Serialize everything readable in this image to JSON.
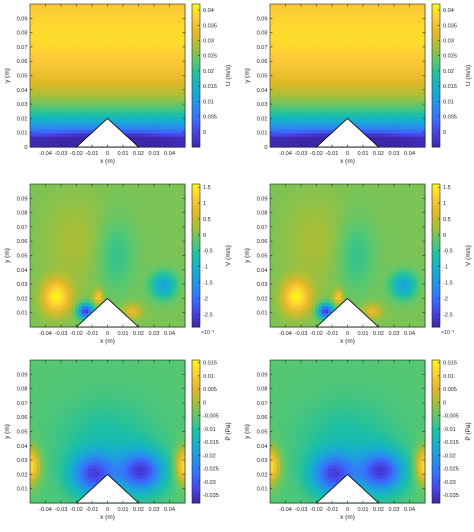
{
  "chart_data": [
    {
      "type": "heatmap",
      "variable": "U",
      "field": "u-velocity",
      "xlabel": "x (m)",
      "ylabel": "y (m)",
      "xlim": [
        -0.05,
        0.05
      ],
      "ylim": [
        0,
        0.1
      ],
      "xticks": [
        "-0.04",
        "-0.03",
        "-0.02",
        "-0.01",
        "0",
        "0.01",
        "0.02",
        "0.03",
        "0.04"
      ],
      "yticks": [
        "0",
        "0.01",
        "0.02",
        "0.03",
        "0.04",
        "0.05",
        "0.06",
        "0.07",
        "0.08",
        "0.09"
      ],
      "colorbar": {
        "label": "U (m/s)",
        "range": [
          -0.005,
          0.042
        ],
        "ticks": [
          "0",
          "0.005",
          "0.01",
          "0.015",
          "0.02",
          "0.025",
          "0.03",
          "0.035",
          "0.04"
        ],
        "exponent": ""
      },
      "obstacle": {
        "shape": "triangle",
        "base_x": [
          -0.02,
          0.02
        ],
        "apex": [
          0,
          0.02
        ]
      },
      "colormap": "parula"
    },
    {
      "type": "heatmap",
      "variable": "U",
      "field": "u-velocity",
      "xlabel": "x (m)",
      "ylabel": "y (m)",
      "xlim": [
        -0.05,
        0.05
      ],
      "ylim": [
        0,
        0.1
      ],
      "xticks": [
        "-0.04",
        "-0.03",
        "-0.02",
        "-0.01",
        "0",
        "0.01",
        "0.02",
        "0.03",
        "0.04"
      ],
      "yticks": [
        "0",
        "0.01",
        "0.02",
        "0.03",
        "0.04",
        "0.05",
        "0.06",
        "0.07",
        "0.08",
        "0.09"
      ],
      "colorbar": {
        "label": "U (m/s)",
        "range": [
          -0.005,
          0.042
        ],
        "ticks": [
          "0",
          "0.005",
          "0.01",
          "0.015",
          "0.02",
          "0.025",
          "0.03",
          "0.035",
          "0.04"
        ],
        "exponent": ""
      },
      "obstacle": {
        "shape": "triangle",
        "base_x": [
          -0.02,
          0.02
        ],
        "apex": [
          0,
          0.02
        ]
      },
      "colormap": "parula"
    },
    {
      "type": "heatmap",
      "variable": "V",
      "field": "v-velocity",
      "xlabel": "x (m)",
      "ylabel": "y (m)",
      "xlim": [
        -0.05,
        0.05
      ],
      "ylim": [
        0,
        0.1
      ],
      "xticks": [
        "-0.04",
        "-0.03",
        "-0.02",
        "-0.01",
        "0",
        "0.01",
        "0.02",
        "0.03",
        "0.04"
      ],
      "yticks": [
        "0.01",
        "0.02",
        "0.03",
        "0.04",
        "0.05",
        "0.06",
        "0.07",
        "0.08",
        "0.09"
      ],
      "colorbar": {
        "label": "V (m/s)",
        "range": [
          -2.9,
          1.6
        ],
        "ticks": [
          "-2.5",
          "-2",
          "-1.5",
          "-1",
          "-0.5",
          "0",
          "0.5",
          "1",
          "1.5"
        ],
        "exponent": "×10⁻³"
      },
      "obstacle": {
        "shape": "triangle",
        "base_x": [
          -0.02,
          0.02
        ],
        "apex": [
          0,
          0.02
        ]
      },
      "colormap": "parula"
    },
    {
      "type": "heatmap",
      "variable": "V",
      "field": "v-velocity",
      "xlabel": "x (m)",
      "ylabel": "y (m)",
      "xlim": [
        -0.05,
        0.05
      ],
      "ylim": [
        0,
        0.1
      ],
      "xticks": [
        "-0.04",
        "-0.03",
        "-0.02",
        "-0.01",
        "0",
        "0.01",
        "0.02",
        "0.03",
        "0.04"
      ],
      "yticks": [
        "0.01",
        "0.02",
        "0.03",
        "0.04",
        "0.05",
        "0.06",
        "0.07",
        "0.08",
        "0.09"
      ],
      "colorbar": {
        "label": "V (m/s)",
        "range": [
          -2.9,
          1.6
        ],
        "ticks": [
          "-2.5",
          "-2",
          "-1.5",
          "-1",
          "-0.5",
          "0",
          "0.5",
          "1",
          "1.5"
        ],
        "exponent": "×10⁻³"
      },
      "obstacle": {
        "shape": "triangle",
        "base_x": [
          -0.02,
          0.02
        ],
        "apex": [
          0,
          0.02
        ]
      },
      "colormap": "parula"
    },
    {
      "type": "heatmap",
      "variable": "P",
      "field": "pressure",
      "xlabel": "x (m)",
      "ylabel": "y (m)",
      "xlim": [
        -0.05,
        0.05
      ],
      "ylim": [
        0,
        0.1
      ],
      "xticks": [
        "-0.04",
        "-0.03",
        "-0.02",
        "-0.01",
        "0",
        "0.01",
        "0.02",
        "0.03",
        "0.04"
      ],
      "yticks": [
        "0.01",
        "0.02",
        "0.03",
        "0.04",
        "0.05",
        "0.06",
        "0.07",
        "0.08",
        "0.09"
      ],
      "colorbar": {
        "label": "P (Pa)",
        "range": [
          -0.038,
          0.016
        ],
        "ticks": [
          "-0.035",
          "-0.03",
          "-0.025",
          "-0.02",
          "-0.015",
          "-0.01",
          "-0.005",
          "0",
          "0.005",
          "0.01",
          "0.015"
        ],
        "exponent": ""
      },
      "obstacle": {
        "shape": "triangle",
        "base_x": [
          -0.02,
          0.02
        ],
        "apex": [
          0,
          0.02
        ]
      },
      "colormap": "parula"
    },
    {
      "type": "heatmap",
      "variable": "P",
      "field": "pressure",
      "xlabel": "x (m)",
      "ylabel": "y (m)",
      "xlim": [
        -0.05,
        0.05
      ],
      "ylim": [
        0,
        0.1
      ],
      "xticks": [
        "-0.04",
        "-0.03",
        "-0.02",
        "-0.01",
        "0",
        "0.01",
        "0.02",
        "0.03",
        "0.04"
      ],
      "yticks": [
        "0.01",
        "0.02",
        "0.03",
        "0.04",
        "0.05",
        "0.06",
        "0.07",
        "0.08",
        "0.09"
      ],
      "colorbar": {
        "label": "P (Pa)",
        "range": [
          -0.038,
          0.016
        ],
        "ticks": [
          "-0.035",
          "-0.03",
          "-0.025",
          "-0.02",
          "-0.015",
          "-0.01",
          "-0.005",
          "0",
          "0.005",
          "0.01",
          "0.015"
        ],
        "exponent": ""
      },
      "obstacle": {
        "shape": "triangle",
        "base_x": [
          -0.02,
          0.02
        ],
        "apex": [
          0,
          0.02
        ]
      },
      "colormap": "parula"
    }
  ]
}
